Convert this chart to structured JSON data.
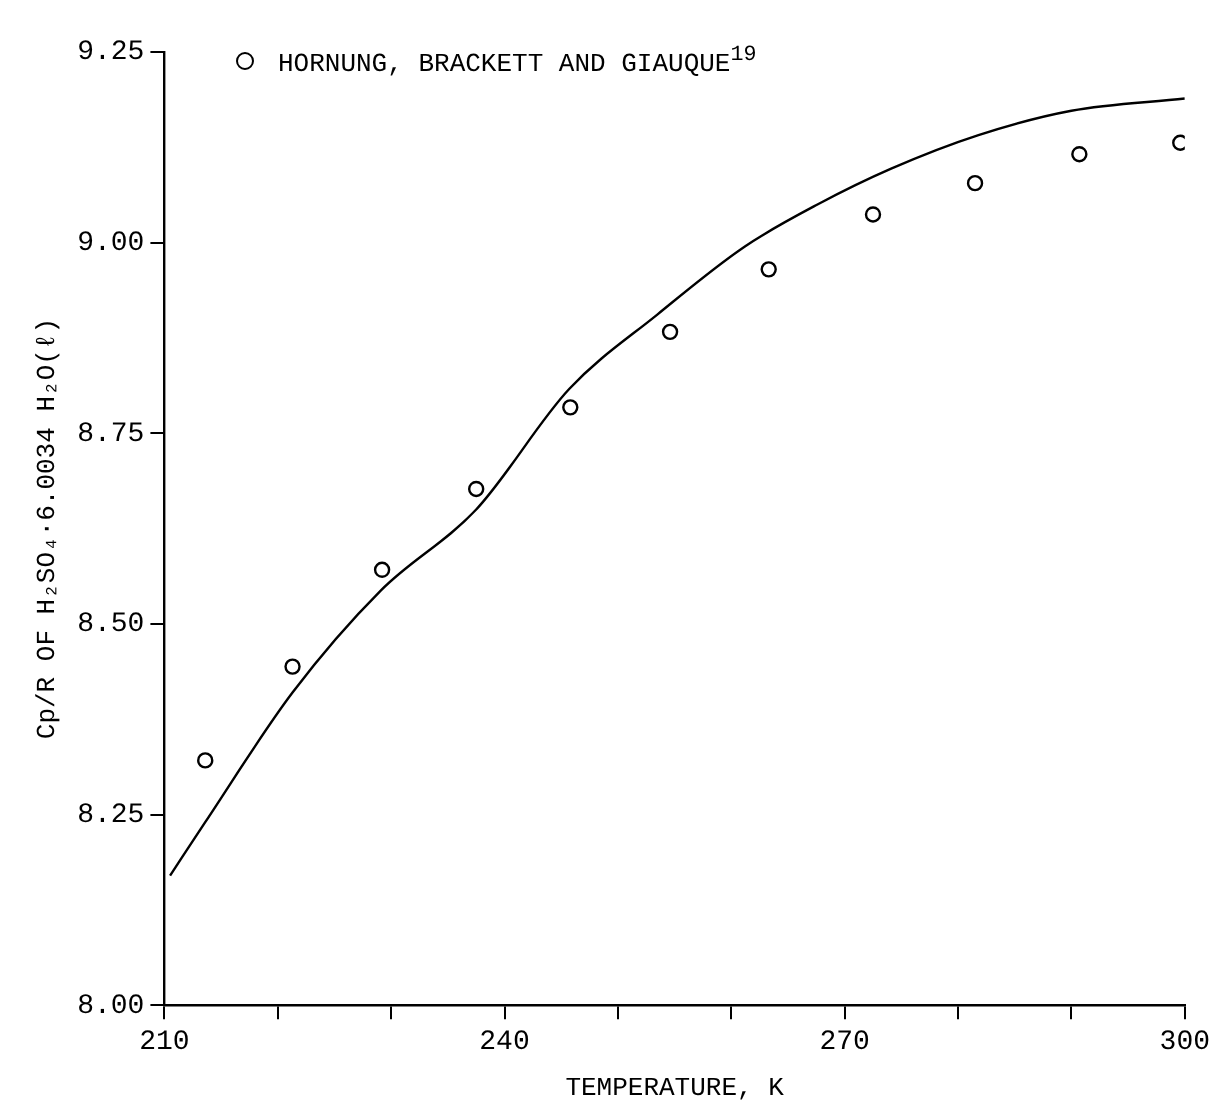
{
  "chart_data": {
    "type": "line",
    "xlabel": "TEMPERATURE, K",
    "ylabel": "Cp/R OF H₂SO₄·6.0034 H₂O(ℓ)",
    "xlim": [
      210,
      300
    ],
    "xticks": [
      210,
      {
        "value": 220,
        "label": null
      },
      {
        "value": 230,
        "label": null
      },
      240,
      {
        "value": 250,
        "label": null
      },
      {
        "value": 260,
        "label": null
      },
      270,
      {
        "value": 280,
        "label": null
      },
      {
        "value": 290,
        "label": null
      },
      300
    ],
    "ylim": [
      8.0,
      9.25
    ],
    "yticks": [
      {
        "value": 8.0,
        "label": "8.00"
      },
      8.25,
      {
        "value": 8.5,
        "label": "8.50"
      },
      8.75,
      {
        "value": 9.0,
        "label": "9.00"
      },
      9.25
    ],
    "grid": false,
    "legend": "top",
    "series": [
      {
        "type": "line",
        "color": "#000000",
        "marker": "none",
        "line_style": "solid",
        "x": [
          210.5,
          213.6,
          221.3,
          229.1,
          237.5,
          245.7,
          253.5,
          261.2,
          267.6,
          274.1,
          281.8,
          290,
          300
        ],
        "values": [
          8.17,
          8.24,
          8.41,
          8.544,
          8.65,
          8.808,
          8.906,
          8.995,
          9.05,
          9.097,
          9.141,
          9.173,
          9.189
        ]
      },
      {
        "type": "scatter",
        "name": "HORNUNG, BRACKETT AND GIAUQUE$^{19}$",
        "color": "#000000",
        "marker": "circle",
        "x": [
          213.6,
          221.3,
          229.2,
          237.5,
          245.8,
          254.6,
          263.3,
          272.5,
          281.5,
          290.7,
          299.6
        ],
        "values": [
          8.321,
          8.444,
          8.571,
          8.677,
          8.784,
          8.883,
          8.965,
          9.037,
          9.078,
          9.116,
          9.131
        ]
      }
    ]
  }
}
